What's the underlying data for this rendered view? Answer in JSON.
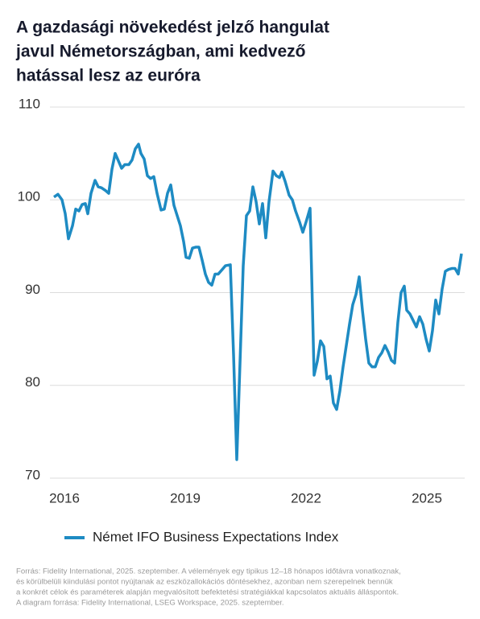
{
  "chart_data": {
    "type": "line",
    "title_lines": [
      "A gazdasági növekedést jelző hangulat",
      "javul Németországban, ami kedvező",
      "hatással lesz az euróra"
    ],
    "xlim": [
      2015.64,
      2025.94
    ],
    "xticks": [
      2016,
      2019,
      2022,
      2025
    ],
    "ylim": [
      70,
      110
    ],
    "yticks": [
      70,
      80,
      90,
      100,
      110
    ],
    "grid": true,
    "legend": "bottom",
    "x": [
      2015.74,
      2015.84,
      2015.94,
      2016.02,
      2016.1,
      2016.2,
      2016.28,
      2016.36,
      2016.44,
      2016.52,
      2016.58,
      2016.66,
      2016.76,
      2016.84,
      2016.92,
      2017.02,
      2017.1,
      2017.18,
      2017.26,
      2017.34,
      2017.42,
      2017.5,
      2017.6,
      2017.68,
      2017.76,
      2017.84,
      2017.9,
      2017.98,
      2018.06,
      2018.14,
      2018.22,
      2018.3,
      2018.4,
      2018.48,
      2018.56,
      2018.64,
      2018.72,
      2018.8,
      2018.88,
      2018.96,
      2019.02,
      2019.1,
      2019.18,
      2019.26,
      2019.34,
      2019.42,
      2019.5,
      2019.58,
      2019.66,
      2019.74,
      2019.82,
      2019.9,
      2020.0,
      2020.12,
      2020.2,
      2020.28,
      2020.36,
      2020.44,
      2020.52,
      2020.6,
      2020.68,
      2020.76,
      2020.84,
      2020.92,
      2021.0,
      2021.08,
      2021.18,
      2021.26,
      2021.34,
      2021.4,
      2021.48,
      2021.58,
      2021.66,
      2021.74,
      2021.84,
      2021.92,
      2022.0,
      2022.1,
      2022.2,
      2022.28,
      2022.36,
      2022.44,
      2022.52,
      2022.6,
      2022.68,
      2022.76,
      2022.84,
      2022.92,
      2023.0,
      2023.08,
      2023.16,
      2023.24,
      2023.32,
      2023.4,
      2023.48,
      2023.56,
      2023.64,
      2023.72,
      2023.8,
      2023.88,
      2023.96,
      2024.04,
      2024.12,
      2024.2,
      2024.28,
      2024.36,
      2024.44,
      2024.5,
      2024.58,
      2024.66,
      2024.74,
      2024.82,
      2024.9,
      2024.98,
      2025.06,
      2025.14,
      2025.22,
      2025.3,
      2025.38,
      2025.46,
      2025.54,
      2025.62,
      2025.7,
      2025.78,
      2025.86
    ],
    "series": [
      {
        "name": "Német IFO Business Expectations Index",
        "color": "#1e8bc3",
        "values": [
          100.3,
          100.6,
          100,
          98.5,
          95.8,
          97.2,
          99,
          98.8,
          99.5,
          99.6,
          98.5,
          100.7,
          102.1,
          101.4,
          101.3,
          101,
          100.7,
          103.3,
          105,
          104.2,
          103.4,
          103.8,
          103.8,
          104.3,
          105.5,
          106,
          105,
          104.4,
          102.6,
          102.3,
          102.5,
          100.7,
          98.9,
          99,
          100.7,
          101.6,
          99.4,
          98.3,
          97.2,
          95.5,
          93.8,
          93.7,
          94.8,
          94.9,
          94.9,
          93.5,
          92,
          91.1,
          90.8,
          92,
          92,
          92.4,
          92.9,
          93,
          83.3,
          72,
          82.4,
          92.9,
          98.3,
          98.8,
          101.4,
          99.8,
          97.4,
          99.6,
          95.9,
          99.8,
          103.1,
          102.6,
          102.4,
          103,
          102,
          100.5,
          100,
          98.8,
          97.6,
          96.5,
          97.6,
          99.1,
          81.1,
          82.6,
          84.8,
          84.2,
          80.7,
          81,
          78.1,
          77.4,
          79.4,
          82,
          84.3,
          86.6,
          88.7,
          89.8,
          91.7,
          88.1,
          85,
          82.4,
          82,
          82,
          83,
          83.5,
          84.3,
          83.6,
          82.7,
          82.4,
          86.8,
          90,
          90.7,
          88.1,
          87.7,
          87,
          86.3,
          87.4,
          86.6,
          85,
          83.7,
          85.9,
          89.2,
          87.7,
          90.4,
          92.3,
          92.5,
          92.6,
          92.6,
          92,
          94.2
        ]
      }
    ],
    "source_lines": [
      "Forrás: Fidelity International, 2025. szeptember. A vélemények egy tipikus 12–18 hónapos időtávra vonatkoznak,",
      "és körülbelüli kiindulási pontot nyújtanak az eszközallokációs döntésekhez, azonban nem szerepelnek bennük",
      "a konkrét célok és paraméterek alapján megvalósított befektetési stratégiákkal kapcsolatos aktuális álláspontok.",
      "A diagram forrása: Fidelity International, LSEG Workspace, 2025. szeptember."
    ]
  }
}
